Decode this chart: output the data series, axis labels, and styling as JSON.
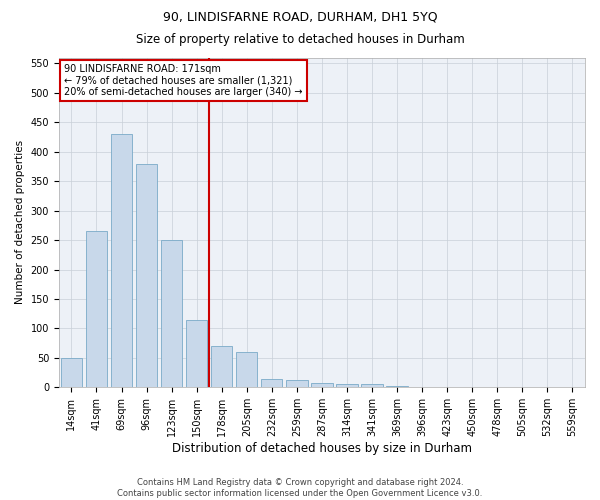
{
  "title1": "90, LINDISFARNE ROAD, DURHAM, DH1 5YQ",
  "title2": "Size of property relative to detached houses in Durham",
  "xlabel": "Distribution of detached houses by size in Durham",
  "ylabel": "Number of detached properties",
  "categories": [
    "14sqm",
    "41sqm",
    "69sqm",
    "96sqm",
    "123sqm",
    "150sqm",
    "178sqm",
    "205sqm",
    "232sqm",
    "259sqm",
    "287sqm",
    "314sqm",
    "341sqm",
    "369sqm",
    "396sqm",
    "423sqm",
    "450sqm",
    "478sqm",
    "505sqm",
    "532sqm",
    "559sqm"
  ],
  "values": [
    50,
    265,
    430,
    380,
    250,
    115,
    70,
    60,
    15,
    12,
    8,
    5,
    5,
    3,
    0,
    0,
    1,
    0,
    0,
    0,
    0
  ],
  "bar_color": "#c8d8ea",
  "bar_edge_color": "#7aaac8",
  "vline_color": "#cc0000",
  "vline_x": 5.5,
  "ylim": [
    0,
    560
  ],
  "yticks": [
    0,
    50,
    100,
    150,
    200,
    250,
    300,
    350,
    400,
    450,
    500,
    550
  ],
  "annotation_text": "90 LINDISFARNE ROAD: 171sqm\n← 79% of detached houses are smaller (1,321)\n20% of semi-detached houses are larger (340) →",
  "annotation_box_facecolor": "#ffffff",
  "annotation_box_edgecolor": "#cc0000",
  "footer1": "Contains HM Land Registry data © Crown copyright and database right 2024.",
  "footer2": "Contains public sector information licensed under the Open Government Licence v3.0.",
  "fig_facecolor": "#ffffff",
  "plot_facecolor": "#edf1f7",
  "grid_color": "#c8cfd8",
  "title1_fontsize": 9,
  "title2_fontsize": 8.5,
  "xlabel_fontsize": 8.5,
  "ylabel_fontsize": 7.5,
  "tick_fontsize": 7,
  "footer_fontsize": 6,
  "ann_fontsize": 7
}
